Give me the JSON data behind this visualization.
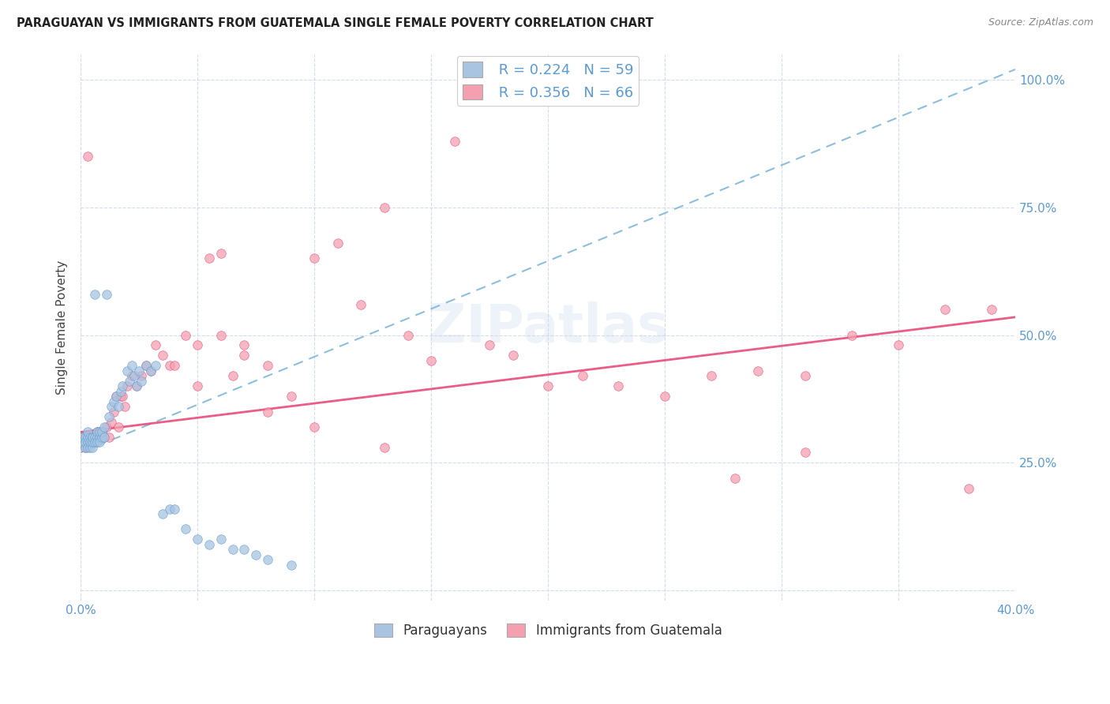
{
  "title": "PARAGUAYAN VS IMMIGRANTS FROM GUATEMALA SINGLE FEMALE POVERTY CORRELATION CHART",
  "source": "Source: ZipAtlas.com",
  "ylabel": "Single Female Poverty",
  "legend_label1": "Paraguayans",
  "legend_label2": "Immigrants from Guatemala",
  "R1": 0.224,
  "N1": 59,
  "R2": 0.356,
  "N2": 66,
  "xlim": [
    0.0,
    0.4
  ],
  "ylim": [
    0.0,
    1.05
  ],
  "color1": "#a8c4e0",
  "color2": "#f4a0b0",
  "line_color1": "#5b9bd5",
  "line_color2": "#e84b7a",
  "watermark": "ZIPatlas",
  "paraguayan_x": [
    0.001,
    0.001,
    0.002,
    0.002,
    0.002,
    0.003,
    0.003,
    0.003,
    0.003,
    0.004,
    0.004,
    0.004,
    0.005,
    0.005,
    0.005,
    0.005,
    0.006,
    0.006,
    0.006,
    0.007,
    0.007,
    0.007,
    0.008,
    0.008,
    0.008,
    0.009,
    0.009,
    0.01,
    0.01,
    0.011,
    0.012,
    0.013,
    0.014,
    0.015,
    0.016,
    0.017,
    0.018,
    0.02,
    0.021,
    0.022,
    0.023,
    0.024,
    0.025,
    0.026,
    0.028,
    0.03,
    0.032,
    0.035,
    0.038,
    0.04,
    0.045,
    0.05,
    0.055,
    0.06,
    0.065,
    0.07,
    0.075,
    0.08,
    0.09
  ],
  "paraguayan_y": [
    0.29,
    0.3,
    0.28,
    0.3,
    0.29,
    0.29,
    0.28,
    0.3,
    0.31,
    0.28,
    0.3,
    0.29,
    0.3,
    0.28,
    0.29,
    0.3,
    0.3,
    0.29,
    0.58,
    0.3,
    0.31,
    0.29,
    0.3,
    0.29,
    0.31,
    0.3,
    0.31,
    0.3,
    0.32,
    0.58,
    0.34,
    0.36,
    0.37,
    0.38,
    0.36,
    0.39,
    0.4,
    0.43,
    0.41,
    0.44,
    0.42,
    0.4,
    0.43,
    0.41,
    0.44,
    0.43,
    0.44,
    0.15,
    0.16,
    0.16,
    0.12,
    0.1,
    0.09,
    0.1,
    0.08,
    0.08,
    0.07,
    0.06,
    0.05
  ],
  "guatemala_x": [
    0.001,
    0.002,
    0.003,
    0.004,
    0.005,
    0.006,
    0.007,
    0.008,
    0.009,
    0.01,
    0.011,
    0.012,
    0.013,
    0.014,
    0.015,
    0.016,
    0.017,
    0.018,
    0.019,
    0.02,
    0.022,
    0.024,
    0.026,
    0.028,
    0.03,
    0.032,
    0.035,
    0.038,
    0.04,
    0.045,
    0.05,
    0.055,
    0.06,
    0.065,
    0.07,
    0.08,
    0.09,
    0.1,
    0.11,
    0.12,
    0.13,
    0.14,
    0.15,
    0.16,
    0.175,
    0.185,
    0.2,
    0.215,
    0.23,
    0.25,
    0.27,
    0.29,
    0.31,
    0.33,
    0.35,
    0.37,
    0.39,
    0.06,
    0.07,
    0.08,
    0.05,
    0.1,
    0.13,
    0.28,
    0.31,
    0.38
  ],
  "guatemala_y": [
    0.3,
    0.28,
    0.85,
    0.3,
    0.3,
    0.29,
    0.31,
    0.3,
    0.31,
    0.3,
    0.32,
    0.3,
    0.33,
    0.35,
    0.38,
    0.32,
    0.38,
    0.38,
    0.36,
    0.4,
    0.42,
    0.4,
    0.42,
    0.44,
    0.43,
    0.48,
    0.46,
    0.44,
    0.44,
    0.5,
    0.48,
    0.65,
    0.66,
    0.42,
    0.48,
    0.35,
    0.38,
    0.65,
    0.68,
    0.56,
    0.75,
    0.5,
    0.45,
    0.88,
    0.48,
    0.46,
    0.4,
    0.42,
    0.4,
    0.38,
    0.42,
    0.43,
    0.42,
    0.5,
    0.48,
    0.55,
    0.55,
    0.5,
    0.46,
    0.44,
    0.4,
    0.32,
    0.28,
    0.22,
    0.27,
    0.2
  ],
  "trend1_x0": 0.0,
  "trend1_y0": 0.27,
  "trend1_x1": 0.4,
  "trend1_y1": 1.02,
  "trend2_x0": 0.0,
  "trend2_y0": 0.31,
  "trend2_x1": 0.4,
  "trend2_y1": 0.535
}
